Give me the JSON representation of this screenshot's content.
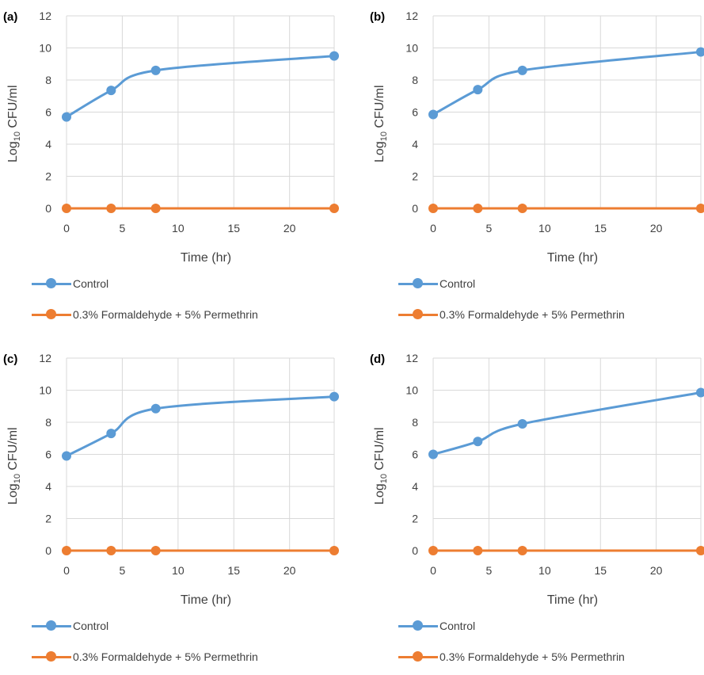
{
  "chart_data": [
    {
      "type": "line",
      "panel_label": "(a)",
      "xlabel": "Time (hr)",
      "ylabel_main": "Log",
      "ylabel_sub": "10",
      "ylabel_rest": " CFU/ml",
      "xlim": [
        0,
        24
      ],
      "ylim": [
        0,
        12
      ],
      "x_ticks": [
        0,
        5,
        10,
        15,
        20
      ],
      "y_ticks": [
        0,
        2,
        4,
        6,
        8,
        10,
        12
      ],
      "grid": true,
      "legend_position": "bottom",
      "series": [
        {
          "name": "Control",
          "color": "#5B9BD5",
          "x": [
            0,
            4,
            8,
            24
          ],
          "y": [
            5.7,
            7.35,
            8.6,
            9.5
          ]
        },
        {
          "name": "0.3% Formaldehyde + 5% Permethrin",
          "color": "#ED7D31",
          "x": [
            0,
            4,
            8,
            24
          ],
          "y": [
            0,
            0,
            0,
            0
          ]
        }
      ]
    },
    {
      "type": "line",
      "panel_label": "(b)",
      "xlabel": "Time (hr)",
      "ylabel_main": "Log",
      "ylabel_sub": "10",
      "ylabel_rest": " CFU/ml",
      "xlim": [
        0,
        24
      ],
      "ylim": [
        0,
        12
      ],
      "x_ticks": [
        0,
        5,
        10,
        15,
        20
      ],
      "y_ticks": [
        0,
        2,
        4,
        6,
        8,
        10,
        12
      ],
      "grid": true,
      "legend_position": "bottom",
      "series": [
        {
          "name": "Control",
          "color": "#5B9BD5",
          "x": [
            0,
            4,
            8,
            24
          ],
          "y": [
            5.85,
            7.4,
            8.6,
            9.75
          ]
        },
        {
          "name": "0.3% Formaldehyde + 5% Permethrin",
          "color": "#ED7D31",
          "x": [
            0,
            4,
            8,
            24
          ],
          "y": [
            0,
            0,
            0,
            0
          ]
        }
      ]
    },
    {
      "type": "line",
      "panel_label": "(c)",
      "xlabel": "Time (hr)",
      "ylabel_main": "Log",
      "ylabel_sub": "10",
      "ylabel_rest": " CFU/ml",
      "xlim": [
        0,
        24
      ],
      "ylim": [
        0,
        12
      ],
      "x_ticks": [
        0,
        5,
        10,
        15,
        20
      ],
      "y_ticks": [
        0,
        2,
        4,
        6,
        8,
        10,
        12
      ],
      "grid": true,
      "legend_position": "bottom",
      "series": [
        {
          "name": "Control",
          "color": "#5B9BD5",
          "x": [
            0,
            4,
            8,
            24
          ],
          "y": [
            5.9,
            7.3,
            8.85,
            9.6
          ]
        },
        {
          "name": "0.3% Formaldehyde + 5% Permethrin",
          "color": "#ED7D31",
          "x": [
            0,
            4,
            8,
            24
          ],
          "y": [
            0,
            0,
            0,
            0
          ]
        }
      ]
    },
    {
      "type": "line",
      "panel_label": "(d)",
      "xlabel": "Time (hr)",
      "ylabel_main": "Log",
      "ylabel_sub": "10",
      "ylabel_rest": " CFU/ml",
      "xlim": [
        0,
        24
      ],
      "ylim": [
        0,
        12
      ],
      "x_ticks": [
        0,
        5,
        10,
        15,
        20
      ],
      "y_ticks": [
        0,
        2,
        4,
        6,
        8,
        10,
        12
      ],
      "grid": true,
      "legend_position": "bottom",
      "series": [
        {
          "name": "Control",
          "color": "#5B9BD5",
          "x": [
            0,
            4,
            8,
            24
          ],
          "y": [
            6.0,
            6.8,
            7.9,
            9.85
          ]
        },
        {
          "name": "0.3% Formaldehyde + 5% Permethrin",
          "color": "#ED7D31",
          "x": [
            0,
            4,
            8,
            24
          ],
          "y": [
            0,
            0,
            0,
            0
          ]
        }
      ]
    }
  ]
}
